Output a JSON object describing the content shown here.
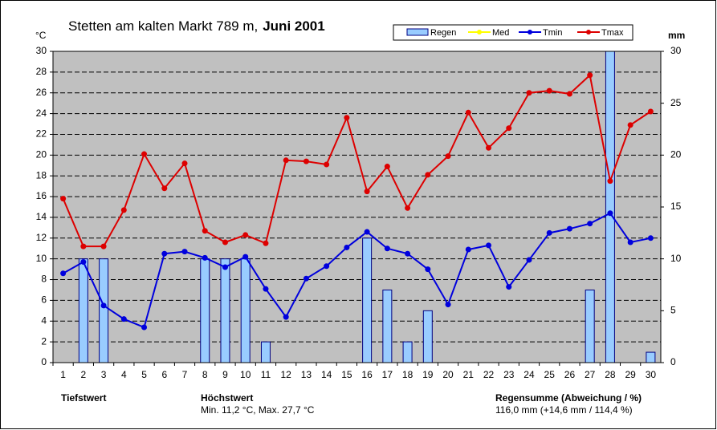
{
  "chart_data": {
    "type": "line",
    "title": "Stetten am kalten Markt  789 m,",
    "title_bold": "Juni 2001",
    "y_label": "°C",
    "y2_label": "mm",
    "categories": [
      "1",
      "2",
      "3",
      "4",
      "5",
      "6",
      "7",
      "8",
      "9",
      "10",
      "11",
      "12",
      "13",
      "14",
      "15",
      "16",
      "17",
      "18",
      "19",
      "20",
      "21",
      "22",
      "23",
      "24",
      "25",
      "26",
      "27",
      "28",
      "29",
      "30"
    ],
    "series": [
      {
        "name": "Regen",
        "type": "bar",
        "axis": "y2",
        "color": "#99ccff",
        "values": [
          0,
          10,
          10,
          0,
          0,
          0,
          0,
          10,
          10,
          10,
          2,
          0,
          0,
          0,
          0,
          12,
          7,
          2,
          5,
          0,
          0,
          0,
          0,
          0,
          0,
          0,
          7,
          30,
          0,
          1
        ]
      },
      {
        "name": "Med",
        "type": "line",
        "color": "#ffff00",
        "values": [
          null,
          null,
          null,
          null,
          null,
          null,
          null,
          null,
          null,
          null,
          null,
          null,
          null,
          null,
          null,
          null,
          null,
          null,
          null,
          null,
          null,
          null,
          null,
          null,
          null,
          null,
          null,
          null,
          null,
          null
        ]
      },
      {
        "name": "Tmin",
        "type": "line",
        "color": "#0000dd",
        "values": [
          8.6,
          9.7,
          5.5,
          4.2,
          3.4,
          10.5,
          10.7,
          10.1,
          9.2,
          10.2,
          7.1,
          4.4,
          8.1,
          9.3,
          11.1,
          12.6,
          11.0,
          10.5,
          9.0,
          5.6,
          10.9,
          11.3,
          7.3,
          9.9,
          12.5,
          12.9,
          13.4,
          14.4,
          11.6,
          12.0
        ]
      },
      {
        "name": "Tmax",
        "type": "line",
        "color": "#dd0000",
        "values": [
          15.8,
          11.2,
          11.2,
          14.7,
          20.1,
          16.8,
          19.2,
          12.7,
          11.6,
          12.3,
          11.5,
          19.5,
          19.4,
          19.1,
          23.6,
          16.5,
          18.9,
          14.9,
          18.1,
          19.9,
          24.1,
          20.7,
          22.6,
          26.0,
          26.2,
          25.9,
          27.7,
          17.5,
          22.9,
          24.2
        ]
      }
    ],
    "ylim": [
      0,
      30
    ],
    "yticks": [
      0,
      2,
      4,
      6,
      8,
      10,
      12,
      14,
      16,
      18,
      20,
      22,
      24,
      26,
      28,
      30
    ],
    "y2lim": [
      0,
      30
    ],
    "y2ticks": [
      0,
      5,
      10,
      15,
      20,
      25,
      30
    ],
    "grid": true,
    "footer": {
      "min_label": "Tiefstwert",
      "max_label": "Höchstwert",
      "minmax_text": "Min. 11,2 °C, Max. 27,7 °C",
      "rain_label": "Regensumme (Abweichung / %)",
      "rain_text": "116,0 mm (+14,6 mm / 114,4 %)"
    }
  }
}
